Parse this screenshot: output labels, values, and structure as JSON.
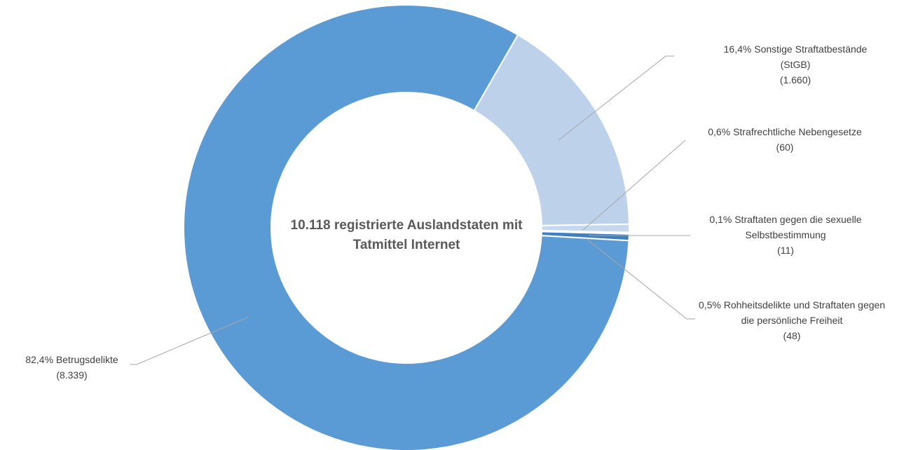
{
  "chart_data": {
    "type": "pie",
    "title": "10.118 registrierte Auslandstaten mit Tatmittel Internet",
    "categories": [
      "Sonstige Straftatbestände (StGB)",
      "Strafrechtliche Nebengesetze",
      "Straftaten gegen die sexuelle Selbstbestimmung",
      "Rohheitsdelikte und Straftaten gegen die persönliche Freiheit",
      "Betrugsdelikte"
    ],
    "values": [
      1660,
      60,
      11,
      48,
      8339
    ],
    "value_labels": [
      "(1.660)",
      "(60)",
      "(11)",
      "(48)",
      "(8.339)"
    ],
    "percent_labels": [
      "16,4%",
      "0,6%",
      "0,1%",
      "0,5%",
      "82,4%"
    ],
    "colors": [
      "#bdd1eb",
      "#c6d8ef",
      "#b5cbe8",
      "#3f7fc0",
      "#5b9bd5"
    ],
    "donut": true
  }
}
